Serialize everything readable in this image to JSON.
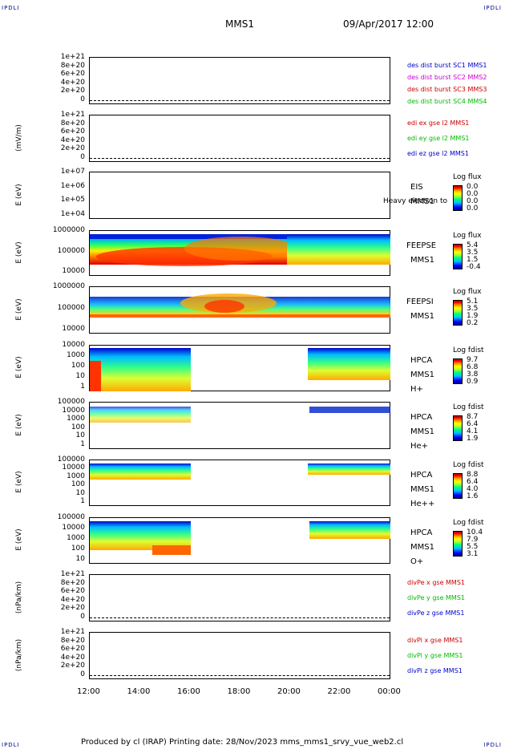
{
  "corners": {
    "tl": "IPDLI",
    "tr": "IPDLI",
    "bl": "IPDLI",
    "br": "IPDLI"
  },
  "header": {
    "mission": "MMS1",
    "datetime": "09/Apr/2017 12:00"
  },
  "footer": "Produced by cl (IRAP)   Printing date: 28/Nov/2023   mms_mms1_srvy_vue_web2.cl",
  "xaxis": {
    "ticks": [
      "12:00",
      "14:00",
      "16:00",
      "18:00",
      "20:00",
      "22:00",
      "00:00"
    ]
  },
  "panels": [
    {
      "id": "p1",
      "ylabel": "",
      "ticks": [
        "1e+21",
        "8e+20",
        "6e+20",
        "4e+20",
        "2e+20",
        "0"
      ],
      "legend": [
        {
          "text": "des dist burst SC1 MMS1",
          "color": "#0000cd"
        },
        {
          "text": "des dist burst SC2 MMS2",
          "color": "#cc00cc"
        },
        {
          "text": "des dist burst SC3 MMS3",
          "color": "#cc0000"
        },
        {
          "text": "des dist burst SC4 MMS4",
          "color": "#00bb00"
        }
      ]
    },
    {
      "id": "p2",
      "ylabel": "(mV/m)",
      "ticks": [
        "1e+21",
        "8e+20",
        "6e+20",
        "4e+20",
        "2e+20",
        "0"
      ],
      "legend": [
        {
          "text": "edi ex gse l2 MMS1",
          "color": "#cc0000"
        },
        {
          "text": "edi ey gse l2 MMS1",
          "color": "#00bb00"
        },
        {
          "text": "edi ez gse l2 MMS1",
          "color": "#0000cd"
        }
      ]
    },
    {
      "id": "p3",
      "ylabel": "E (eV)",
      "ticks": [
        "1e+07",
        "1e+06",
        "1e+05",
        "1e+04"
      ],
      "inst": [
        "EIS",
        "MMS1"
      ],
      "extra": "Heavy electron to",
      "cb": {
        "title": "Log flux",
        "vals": [
          "0.0",
          "0.0",
          "0.0",
          "0.0"
        ]
      }
    },
    {
      "id": "p4",
      "ylabel": "E (eV)",
      "ticks": [
        "1000000",
        "100000",
        "10000"
      ],
      "inst": [
        "FEEPSE",
        "MMS1"
      ],
      "cb": {
        "title": "Log flux",
        "vals": [
          "5.4",
          "3.5",
          "1.5",
          "-0.4"
        ]
      }
    },
    {
      "id": "p5",
      "ylabel": "E (eV)",
      "ticks": [
        "1000000",
        "100000",
        "10000"
      ],
      "inst": [
        "FEEPSI",
        "MMS1"
      ],
      "cb": {
        "title": "Log flux",
        "vals": [
          "5.1",
          "3.5",
          "1.9",
          "0.2"
        ]
      }
    },
    {
      "id": "p6",
      "ylabel": "E (eV)",
      "ticks": [
        "10000",
        "1000",
        "100",
        "10",
        "1"
      ],
      "inst": [
        "HPCA",
        "MMS1",
        "H+"
      ],
      "cb": {
        "title": "Log fdist",
        "vals": [
          "9.7",
          "6.8",
          "3.8",
          "0.9"
        ]
      }
    },
    {
      "id": "p7",
      "ylabel": "E (eV)",
      "ticks": [
        "100000",
        "10000",
        "1000",
        "100",
        "10",
        "1"
      ],
      "inst": [
        "HPCA",
        "MMS1",
        "He+"
      ],
      "cb": {
        "title": "Log fdist",
        "vals": [
          "8.7",
          "6.4",
          "4.1",
          "1.9"
        ]
      }
    },
    {
      "id": "p8",
      "ylabel": "E (eV)",
      "ticks": [
        "100000",
        "10000",
        "1000",
        "100",
        "10",
        "1"
      ],
      "inst": [
        "HPCA",
        "MMS1",
        "He++"
      ],
      "cb": {
        "title": "Log fdist",
        "vals": [
          "8.8",
          "6.4",
          "4.0",
          "1.6"
        ]
      }
    },
    {
      "id": "p9",
      "ylabel": "E (eV)",
      "ticks": [
        "100000",
        "10000",
        "1000",
        "100",
        "10"
      ],
      "inst": [
        "HPCA",
        "MMS1",
        "O+"
      ],
      "cb": {
        "title": "Log fdist",
        "vals": [
          "10.4",
          "7.9",
          "5.5",
          "3.1"
        ]
      }
    },
    {
      "id": "p10",
      "ylabel": "(nPa/km)",
      "ticks": [
        "1e+21",
        "8e+20",
        "6e+20",
        "4e+20",
        "2e+20",
        "0"
      ],
      "legend": [
        {
          "text": "divPe x gse MMS1",
          "color": "#cc0000"
        },
        {
          "text": "divPe y gse MMS1",
          "color": "#00bb00"
        },
        {
          "text": "divPe z gse MMS1",
          "color": "#0000cd"
        }
      ]
    },
    {
      "id": "p11",
      "ylabel": "(nPa/km)",
      "ticks": [
        "1e+21",
        "8e+20",
        "6e+20",
        "4e+20",
        "2e+20",
        "0"
      ],
      "legend": [
        {
          "text": "divPi x gse MMS1",
          "color": "#cc0000"
        },
        {
          "text": "divPi y gse MMS1",
          "color": "#00bb00"
        },
        {
          "text": "divPi z gse MMS1",
          "color": "#0000cd"
        }
      ]
    }
  ],
  "chart_data": {
    "type": "heatmap",
    "x": [
      "12:00",
      "14:00",
      "16:00",
      "18:00",
      "20:00",
      "22:00",
      "00:00"
    ],
    "spectrograms": [
      {
        "instrument": "FEEPSE",
        "colorbar": "Log flux",
        "range": [
          -0.4,
          5.4
        ]
      },
      {
        "instrument": "FEEPSI",
        "colorbar": "Log flux",
        "range": [
          0.2,
          5.1
        ]
      },
      {
        "instrument": "HPCA H+",
        "colorbar": "Log fdist",
        "range": [
          0.9,
          9.7
        ],
        "data_gap": [
          "16:00",
          "20:40"
        ]
      },
      {
        "instrument": "HPCA He+",
        "colorbar": "Log fdist",
        "range": [
          1.9,
          8.7
        ],
        "data_gap": [
          "16:00",
          "20:40"
        ]
      },
      {
        "instrument": "HPCA He++",
        "colorbar": "Log fdist",
        "range": [
          1.6,
          8.8
        ],
        "data_gap": [
          "16:00",
          "20:40"
        ]
      },
      {
        "instrument": "HPCA O+",
        "colorbar": "Log fdist",
        "range": [
          3.1,
          10.4
        ],
        "data_gap": [
          "16:00",
          "20:40"
        ]
      }
    ]
  }
}
